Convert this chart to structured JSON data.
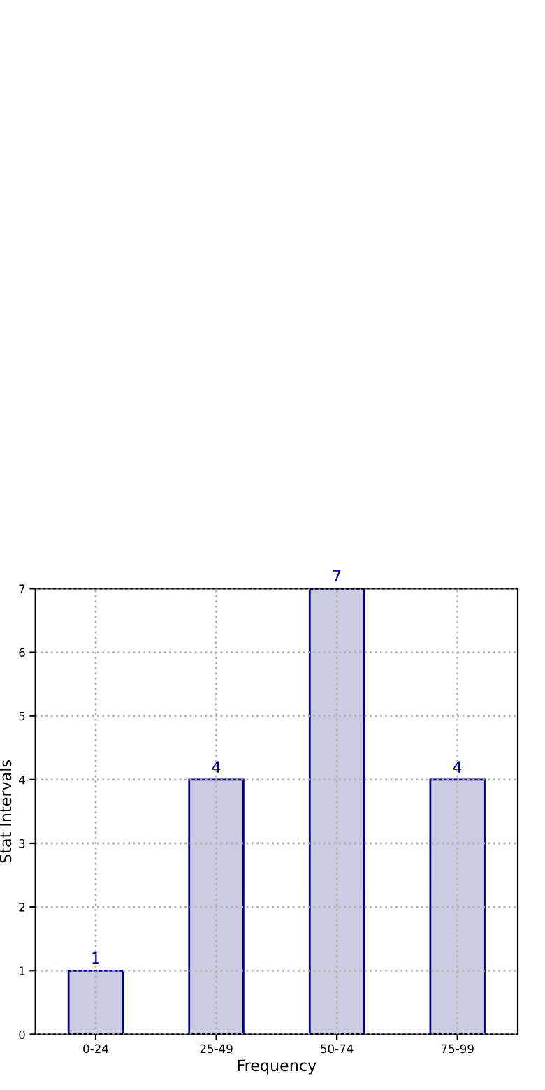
{
  "chart_data": {
    "type": "bar",
    "xlabel": "Frequency",
    "ylabel": "Stat Intervals",
    "categories": [
      "0-24",
      "25-49",
      "50-74",
      "75-99"
    ],
    "series": [
      {
        "color": "#cbcbe3",
        "values": [
          1,
          4,
          7,
          4
        ]
      }
    ],
    "ylim": [
      0,
      7
    ],
    "yticks": [
      0,
      1,
      2,
      3,
      4,
      5,
      6,
      7
    ],
    "grid": true,
    "data_labels": true,
    "line_style": "dotted"
  }
}
